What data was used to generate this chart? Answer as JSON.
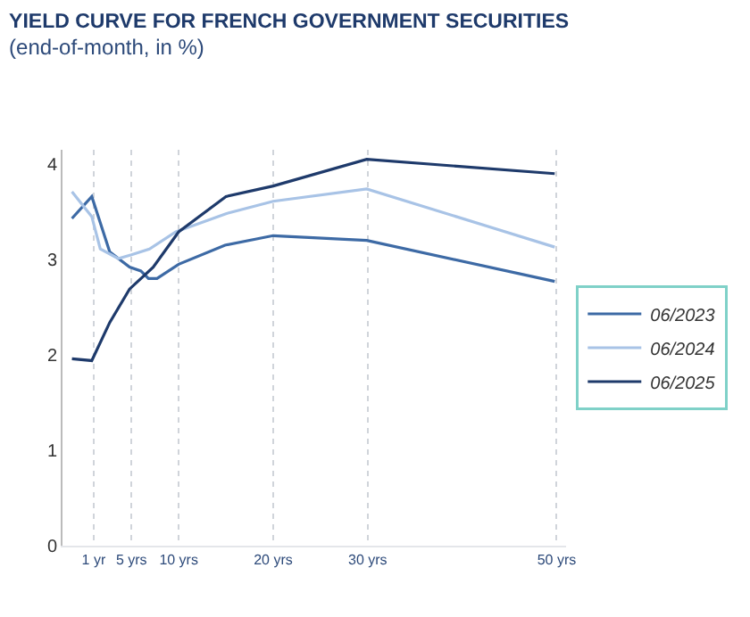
{
  "chart_data": {
    "type": "line",
    "title": "YIELD CURVE FOR FRENCH GOVERNMENT SECURITIES",
    "subtitle": "(end-of-month, in %)",
    "series": [
      {
        "name": "06/2023",
        "color": "#3d6aa5",
        "x": [
          -1.3,
          0.8,
          2.7,
          4.8,
          6,
          6.8,
          7.7,
          10,
          14.9,
          20,
          29.9,
          49.8
        ],
        "values": [
          3.43,
          3.66,
          3.08,
          2.92,
          2.88,
          2.8,
          2.8,
          2.95,
          3.15,
          3.25,
          3.2,
          2.77
        ]
      },
      {
        "name": "06/2024",
        "color": "#a8c3e6",
        "x": [
          -1.3,
          0.8,
          1.7,
          3.6,
          5,
          6.9,
          9.7,
          15,
          20,
          29.9,
          49.8
        ],
        "values": [
          3.71,
          3.45,
          3.11,
          3.01,
          3.05,
          3.11,
          3.29,
          3.48,
          3.61,
          3.74,
          3.13
        ]
      },
      {
        "name": "06/2025",
        "color": "#1e3a6b",
        "x": [
          -1.3,
          0.8,
          2.7,
          4.8,
          7.3,
          10,
          15,
          20,
          29.9,
          49.8
        ],
        "values": [
          1.96,
          1.94,
          2.34,
          2.69,
          2.92,
          3.29,
          3.66,
          3.77,
          4.05,
          3.9
        ]
      }
    ],
    "xlim": [
      -2.3,
      51
    ],
    "ylim": [
      0,
      4.15
    ],
    "xticks": [
      {
        "value": 1,
        "label": "1 yr"
      },
      {
        "value": 5,
        "label": "5 yrs"
      },
      {
        "value": 10,
        "label": "10 yrs"
      },
      {
        "value": 20,
        "label": "20 yrs"
      },
      {
        "value": 30,
        "label": "30 yrs"
      },
      {
        "value": 50,
        "label": "50 yrs"
      }
    ],
    "yticks": [
      0,
      1,
      2,
      3,
      4
    ],
    "grid": "x",
    "legend": "right",
    "marker": "none",
    "line_style": "solid"
  }
}
